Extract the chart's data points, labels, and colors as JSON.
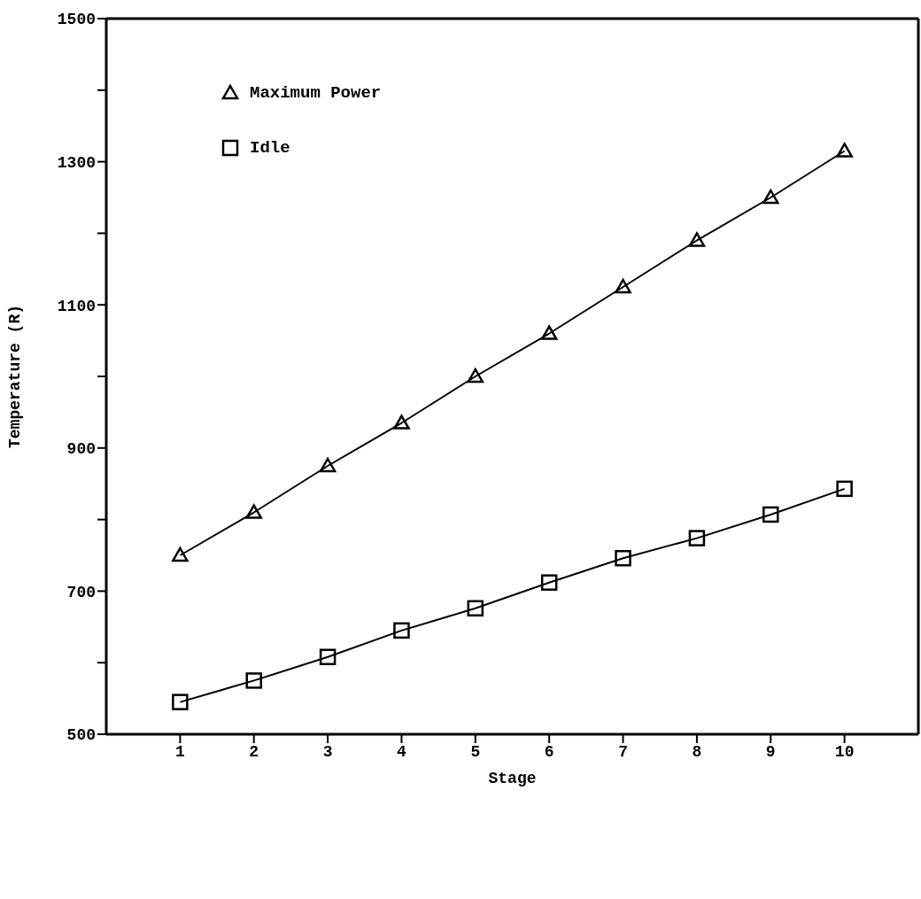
{
  "chart_data": {
    "type": "line",
    "xlabel": "Stage",
    "ylabel": "Temperature (R)",
    "x": [
      1,
      2,
      3,
      4,
      5,
      6,
      7,
      8,
      9,
      10
    ],
    "series": [
      {
        "name": "Maximum Power",
        "color": "#000000",
        "marker": "triangle",
        "values": [
          750,
          810,
          875,
          935,
          1000,
          1060,
          1125,
          1190,
          1250,
          1315
        ]
      },
      {
        "name": "Idle",
        "color": "#000000",
        "marker": "square",
        "values": [
          545,
          575,
          608,
          645,
          676,
          712,
          746,
          774,
          807,
          843
        ]
      }
    ],
    "xlim": [
      0,
      11
    ],
    "xticks": [
      1,
      2,
      3,
      4,
      5,
      6,
      7,
      8,
      9,
      10
    ],
    "ylim": [
      500,
      1500
    ],
    "yticks": [
      500,
      {
        "value": 600,
        "label": null
      },
      700,
      {
        "value": 800,
        "label": null
      },
      900,
      {
        "value": 1000,
        "label": null
      },
      1100,
      {
        "value": 1200,
        "label": null
      },
      1300,
      {
        "value": 1400,
        "label": null
      },
      1500
    ],
    "grid": false,
    "legend": "top left",
    "line_style": "solid"
  }
}
